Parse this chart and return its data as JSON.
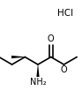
{
  "background_color": "#ffffff",
  "line_color": "#000000",
  "text_color": "#000000",
  "hcl_label": "HCl",
  "nh2_label": "NH₂",
  "o_carbonyl_label": "O",
  "o_ester_label": "O",
  "bond_lw": 1.2,
  "figsize": [
    0.93,
    1.03
  ],
  "dpi": 100
}
